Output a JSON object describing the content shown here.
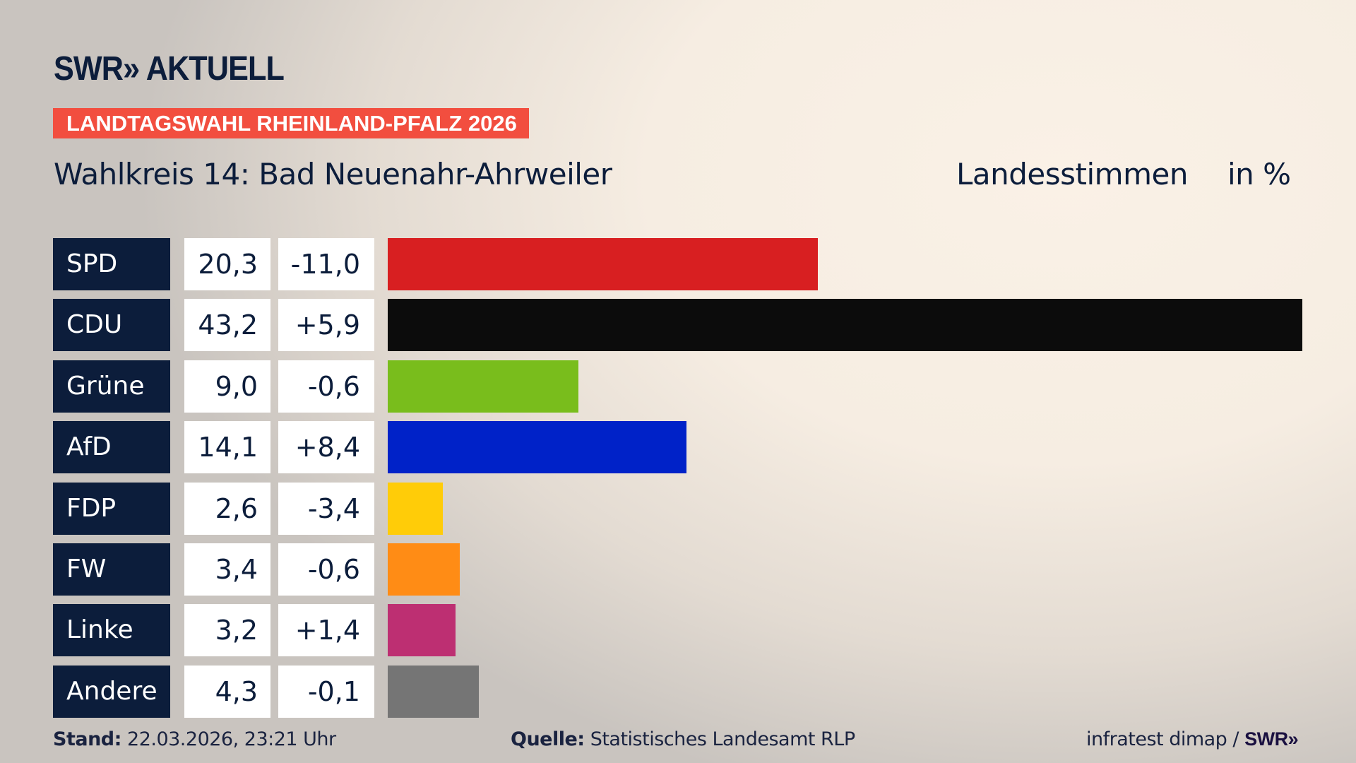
{
  "header": {
    "logo": "SWR» AKTUELL",
    "banner": "LANDTAGSWAHL RHEINLAND-PFALZ 2026",
    "title": "Wahlkreis 14: Bad Neuenahr-Ahrweiler",
    "vote_type": "Landesstimmen",
    "unit": "in %"
  },
  "chart_data": {
    "type": "bar",
    "orientation": "horizontal",
    "categories": [
      "SPD",
      "CDU",
      "Grüne",
      "AfD",
      "FDP",
      "FW",
      "Linke",
      "Andere"
    ],
    "values": [
      20.3,
      43.2,
      9.0,
      14.1,
      2.6,
      3.4,
      3.2,
      4.3
    ],
    "values_label": [
      "20,3",
      "43,2",
      "9,0",
      "14,1",
      "2,6",
      "3,4",
      "3,2",
      "4,3"
    ],
    "diff_label": [
      "-11,0",
      "+5,9",
      "-0,6",
      "+8,4",
      "-3,4",
      "-0,6",
      "+1,4",
      "-0,1"
    ],
    "colors": [
      "#d81f21",
      "#0c0c0c",
      "#79bd1c",
      "#0022c8",
      "#ffcc08",
      "#ff8c15",
      "#bd2f72",
      "#757575"
    ],
    "xlim": [
      0,
      43.2
    ]
  },
  "footer": {
    "stand_label": "Stand:",
    "stand": "22.03.2026, 23:21 Uhr",
    "source_label": "Quelle:",
    "source": "Statistisches Landesamt RLP",
    "credit": "infratest dimap / ",
    "credit_logo": "SWR»"
  }
}
